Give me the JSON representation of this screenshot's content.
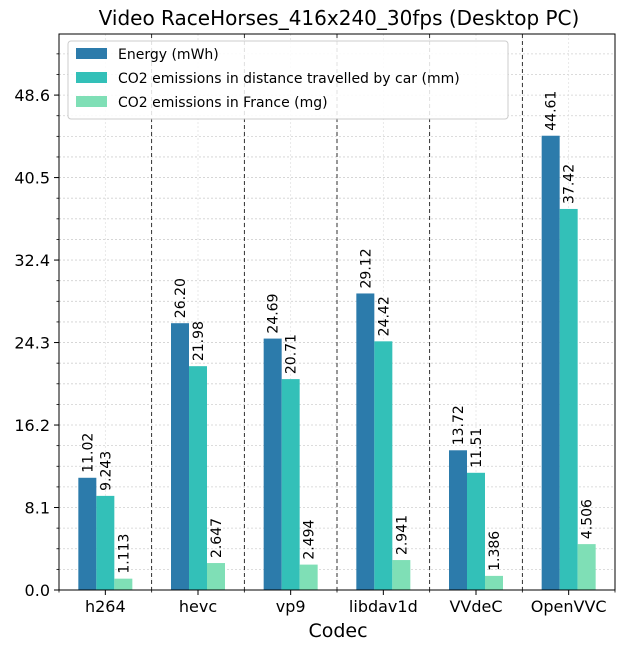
{
  "chart_data": {
    "type": "bar",
    "title": "Video RaceHorses_416x240_30fps (Desktop PC)",
    "xlabel": "Codec",
    "ylabel": "",
    "categories": [
      "h264",
      "hevc",
      "vp9",
      "libdav1d",
      "VVdeC",
      "OpenVVC"
    ],
    "series": [
      {
        "name": "Energy (mWh)",
        "color": "#2c7bab",
        "values": [
          11.02,
          26.2,
          24.69,
          29.12,
          13.72,
          44.61
        ],
        "labels": [
          "11.02",
          "26.20",
          "24.69",
          "29.12",
          "13.72",
          "44.61"
        ]
      },
      {
        "name": "CO2 emissions in distance travelled by car (mm)",
        "color": "#33c0b8",
        "values": [
          9.243,
          21.98,
          20.71,
          24.42,
          11.51,
          37.42
        ],
        "labels": [
          "9.243",
          "21.98",
          "20.71",
          "24.42",
          "11.51",
          "37.42"
        ]
      },
      {
        "name": "CO2 emissions in France (mg)",
        "color": "#7fdfb6",
        "values": [
          1.113,
          2.647,
          2.494,
          2.941,
          1.386,
          4.506
        ],
        "labels": [
          "1.113",
          "2.647",
          "2.494",
          "2.941",
          "1.386",
          "4.506"
        ]
      }
    ],
    "yticks": [
      0.0,
      8.1,
      16.2,
      24.3,
      32.4,
      40.5,
      48.6
    ],
    "yticklabels": [
      "0.0",
      "8.1",
      "16.2",
      "24.3",
      "32.4",
      "40.5",
      "48.6"
    ],
    "ylim": [
      0,
      54.6
    ],
    "grid": true,
    "legend_position": "upper-left"
  }
}
